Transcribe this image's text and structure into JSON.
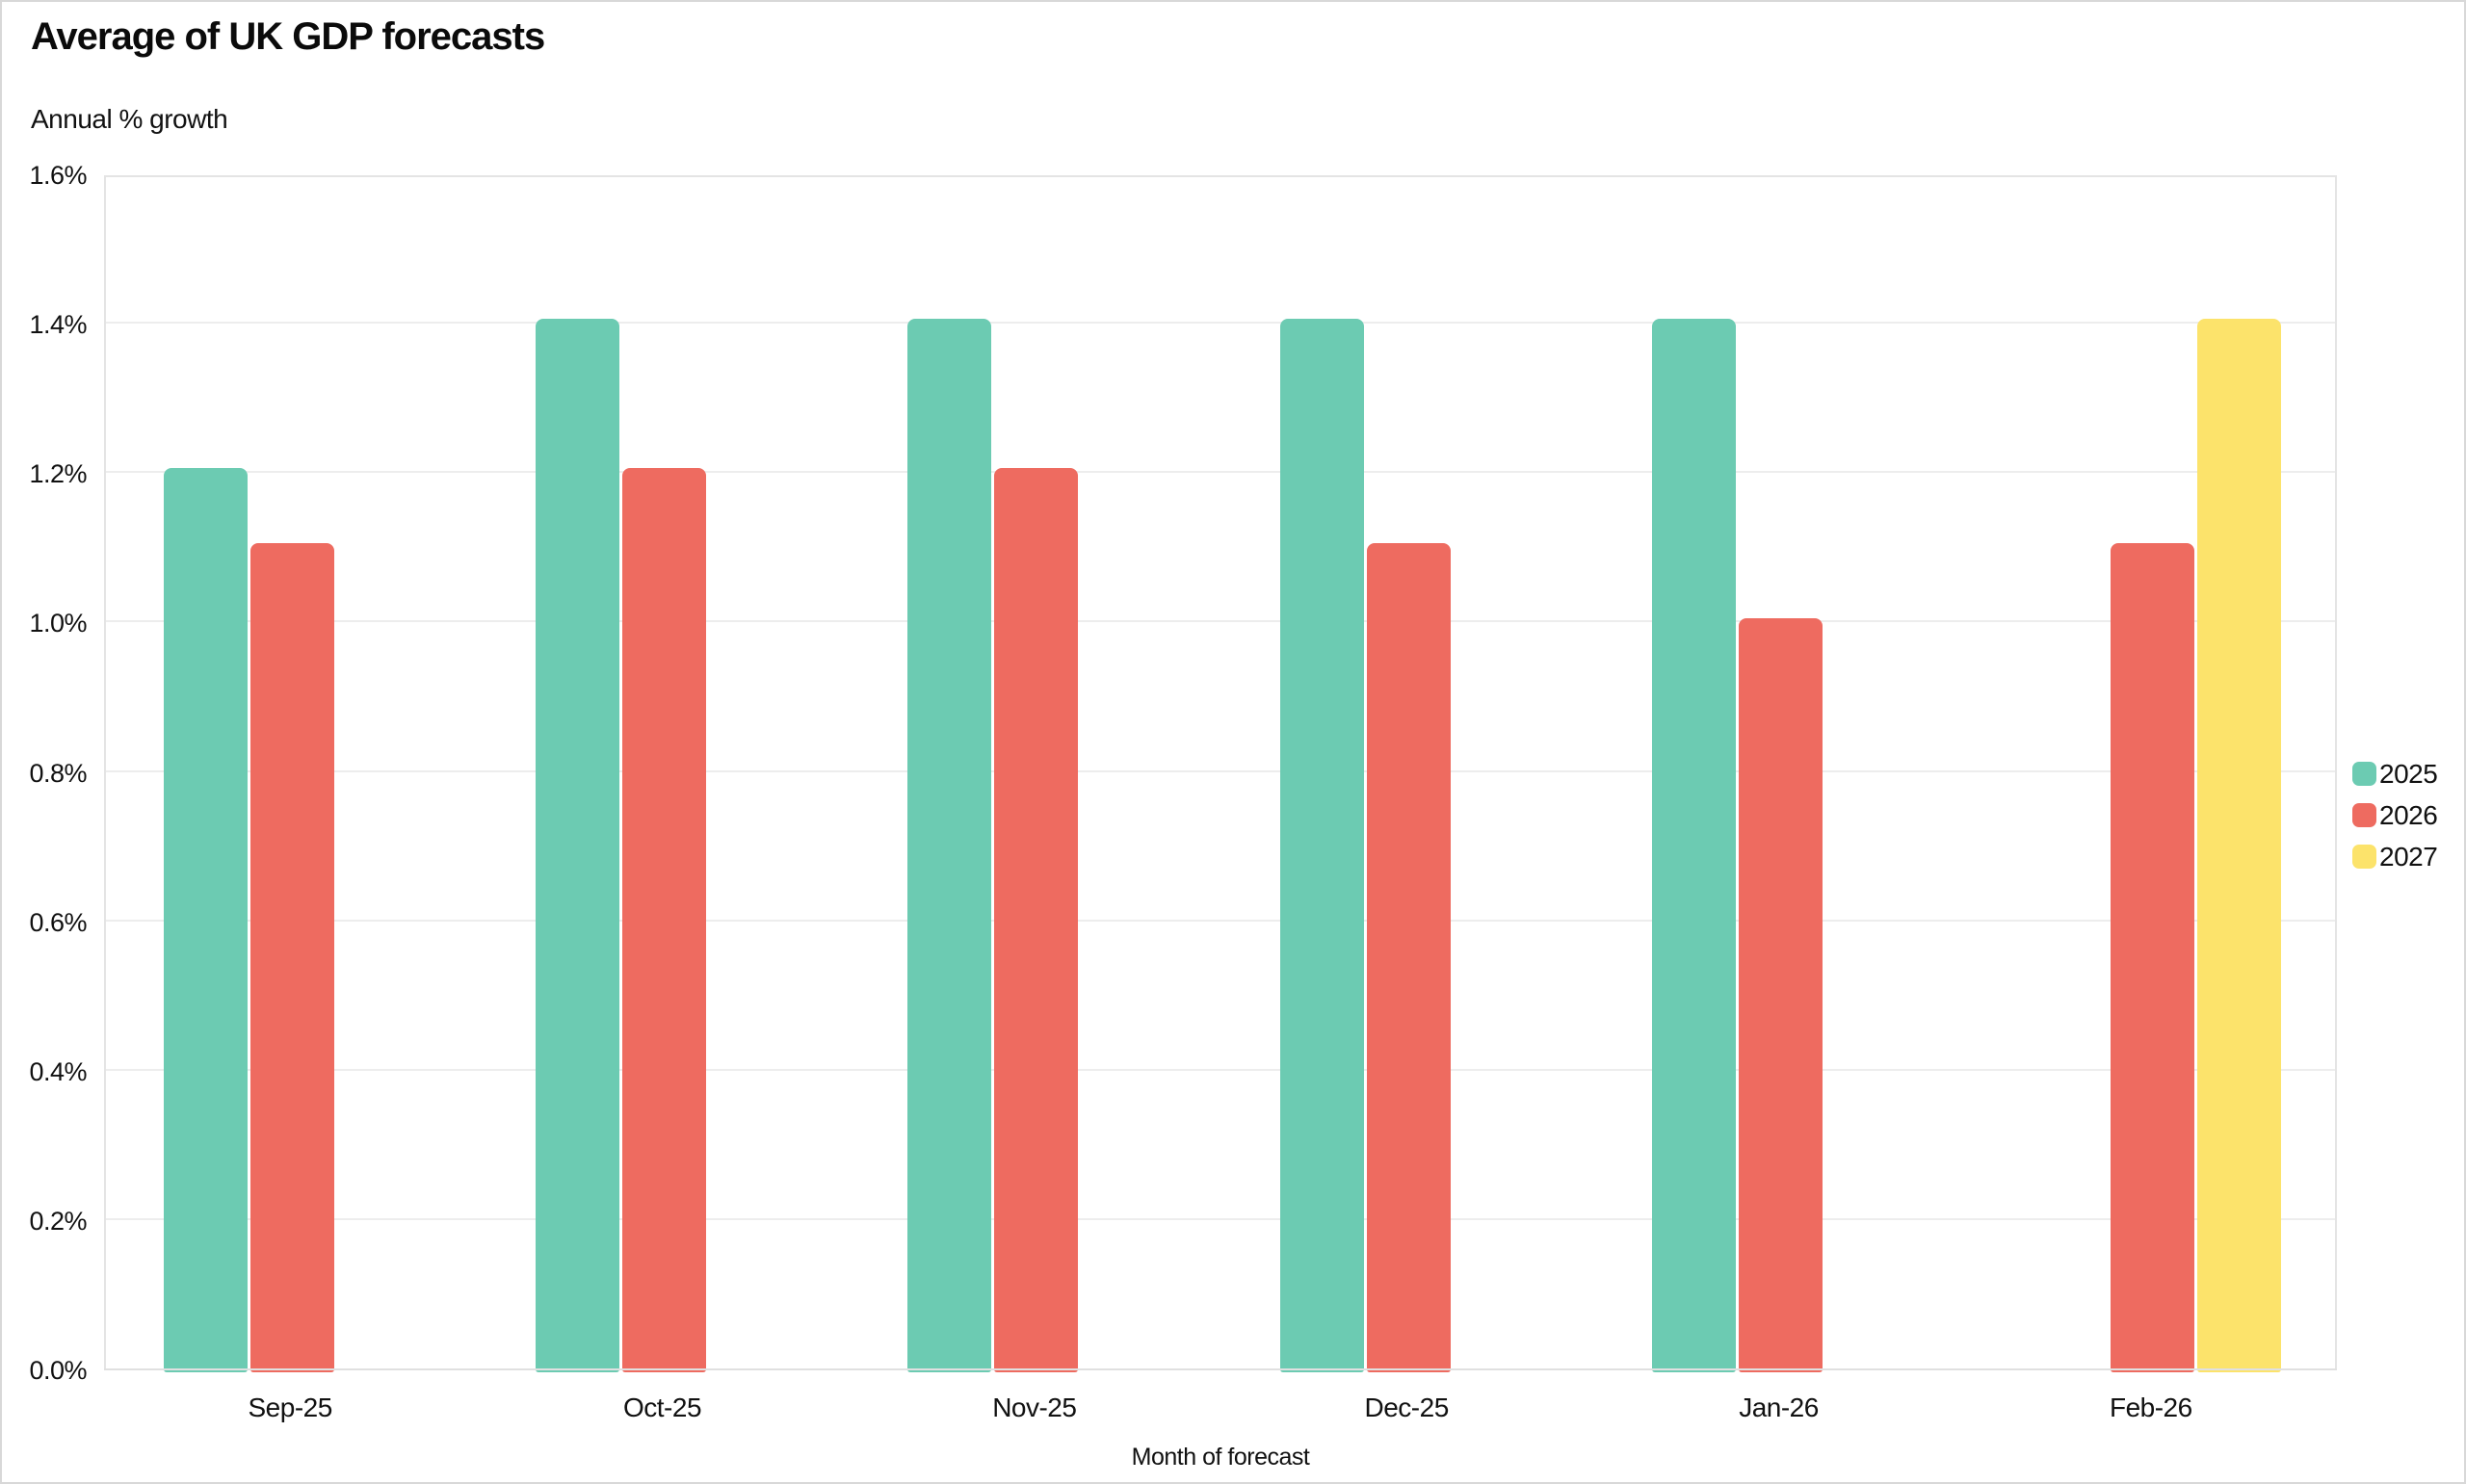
{
  "chart_data": {
    "type": "bar",
    "title": "Average of UK GDP forecasts",
    "subtitle": "Annual % growth",
    "xlabel": "Month of forecast",
    "ylabel": "Annual % growth",
    "categories": [
      "Sep-25",
      "Oct-25",
      "Nov-25",
      "Dec-25",
      "Jan-26",
      "Feb-26"
    ],
    "series": [
      {
        "name": "2025",
        "color": "#6CCBB2",
        "values": [
          1.205,
          1.405,
          1.405,
          1.405,
          1.405,
          null
        ]
      },
      {
        "name": "2026",
        "color": "#EE6B60",
        "values": [
          1.105,
          1.205,
          1.205,
          1.105,
          1.005,
          1.105
        ]
      },
      {
        "name": "2027",
        "color": "#FCE36B",
        "values": [
          null,
          null,
          null,
          null,
          null,
          1.405
        ]
      }
    ],
    "ylim": [
      0,
      1.6
    ],
    "ytick_step": 0.2,
    "ytick_labels": [
      "0.0%",
      "0.2%",
      "0.4%",
      "0.6%",
      "0.8%",
      "1.0%",
      "1.2%",
      "1.4%",
      "1.6%"
    ],
    "grid": "horizontal",
    "legend_position": "right",
    "legend_entries": [
      "2025",
      "2026",
      "2027"
    ]
  },
  "colors": {
    "background": "#ffffff",
    "series_2025": "#6CCBB2",
    "series_2026": "#EE6B60",
    "series_2027": "#FCE36B",
    "gridline": "#ededed",
    "plot_border": "#e4e4e4",
    "text": "#111111"
  }
}
